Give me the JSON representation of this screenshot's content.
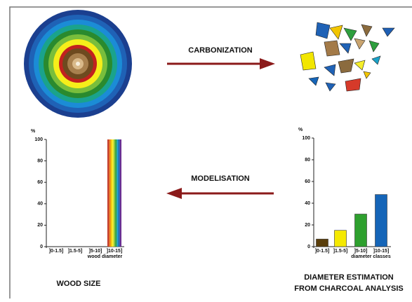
{
  "labels": {
    "carbonization": "CARBONIZATION",
    "modelisation": "MODELISATION",
    "wood_size": "WOOD SIZE",
    "estimation": [
      "DIAMETER ESTIMATION",
      "FROM CHARCOAL ANALYSIS"
    ]
  },
  "chart_data": [
    {
      "type": "bar",
      "y_label": "%",
      "x_label": "wood diameter",
      "categories": [
        "]0-1.5]",
        "]1.5-5]",
        "]5-10]",
        "]10-15]"
      ],
      "values": [
        0,
        0,
        0,
        100
      ],
      "bar_stripes": [
        "#c0392b",
        "#e8711c",
        "#f2c500",
        "#f5ee2a",
        "#8cc63f",
        "#2e9e3e",
        "#1aa2c8",
        "#1f5fb4",
        "#6a2c91"
      ],
      "ylim": [
        0,
        100
      ],
      "yticks": [
        0,
        20,
        40,
        60,
        80,
        100
      ]
    },
    {
      "type": "bar",
      "y_label": "%",
      "x_label": "diameter classes",
      "categories": [
        "]0-1.5]",
        "]1.5-5]",
        "]5-10]",
        "]10-15]"
      ],
      "values": [
        7,
        15,
        30,
        48
      ],
      "colors": [
        "#5a3e0b",
        "#f5e900",
        "#2ea02e",
        "#1565b8"
      ],
      "ylim": [
        0,
        100
      ],
      "yticks": [
        0,
        20,
        40,
        60,
        80,
        100
      ]
    }
  ]
}
